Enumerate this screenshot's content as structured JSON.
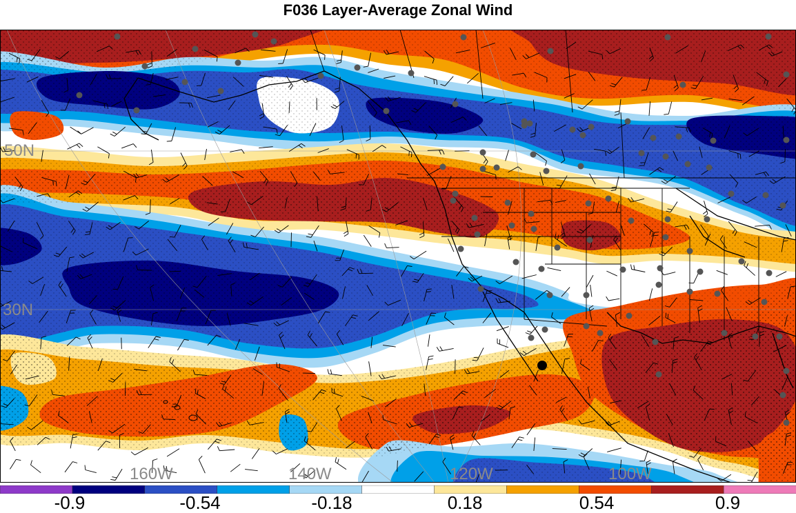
{
  "title": "F036 Layer-Average Zonal Wind",
  "map": {
    "lat_labels": [
      "50N",
      "30N"
    ],
    "lon_labels": [
      "160W",
      "140W",
      "120W",
      "100W"
    ],
    "colors": {
      "deep_blue": "#00007f",
      "blue": "#2b4fc4",
      "mid_blue": "#00a0e8",
      "light_blue": "#a6d8f5",
      "white": "#ffffff",
      "light_yellow": "#fde79a",
      "orange": "#f5a100",
      "red_orange": "#f24c00",
      "dark_red": "#a81e1e",
      "station": "#555555",
      "border": "#000000"
    }
  },
  "colorbar": {
    "colors": [
      "#8e3ac9",
      "#00007f",
      "#2b4fc4",
      "#00a0e8",
      "#a6d8f5",
      "#ffffff",
      "#fde79a",
      "#f5a100",
      "#f24c00",
      "#a81e1e",
      "#ee7ab8"
    ],
    "labels": [
      "-0.9",
      "-0.54",
      "-0.18",
      "0.18",
      "0.54",
      "0.9"
    ]
  }
}
